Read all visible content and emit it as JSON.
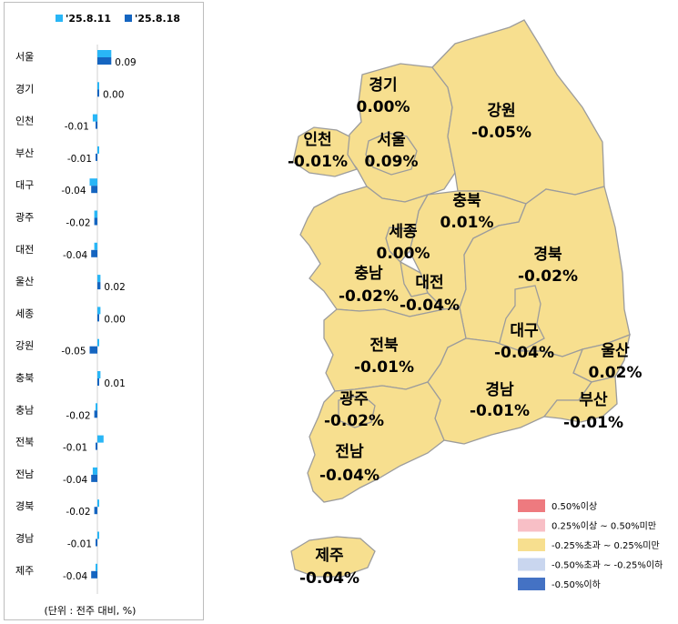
{
  "chart_data": [
    {
      "type": "bar",
      "orientation": "horizontal",
      "categories": [
        "서울",
        "경기",
        "인천",
        "부산",
        "대구",
        "광주",
        "대전",
        "울산",
        "세종",
        "강원",
        "충북",
        "충남",
        "전북",
        "전남",
        "경북",
        "경남",
        "제주"
      ],
      "series": [
        {
          "name": "'25.8.11",
          "color": "#29b6f6",
          "values": [
            0.09,
            0.01,
            -0.03,
            0.0,
            -0.05,
            -0.02,
            -0.02,
            0.02,
            0.02,
            0.0,
            0.02,
            -0.01,
            0.04,
            -0.03,
            0.0,
            0.01,
            -0.01
          ]
        },
        {
          "name": "'25.8.18",
          "color": "#1565c0",
          "values": [
            0.09,
            0.0,
            -0.01,
            -0.01,
            -0.04,
            -0.02,
            -0.04,
            0.02,
            0.0,
            -0.05,
            0.01,
            -0.02,
            -0.01,
            -0.04,
            -0.02,
            -0.01,
            -0.04
          ]
        }
      ],
      "value_labels": [
        "0.09",
        "0.00",
        "-0.01",
        "-0.01",
        "-0.04",
        "-0.02",
        "-0.04",
        "0.02",
        "0.00",
        "-0.05",
        "0.01",
        "-0.02",
        "-0.01",
        "-0.04",
        "-0.02",
        "-0.01",
        "-0.04"
      ],
      "unit_note": "(단위 : 전주 대비, %)",
      "legend": "top"
    },
    {
      "type": "choropleth",
      "regions": [
        {
          "name": "경기",
          "value": "0.00%"
        },
        {
          "name": "강원",
          "value": "-0.05%"
        },
        {
          "name": "인천",
          "value": "-0.01%"
        },
        {
          "name": "서울",
          "value": "0.09%"
        },
        {
          "name": "충북",
          "value": "0.01%"
        },
        {
          "name": "세종",
          "value": "0.00%"
        },
        {
          "name": "경북",
          "value": "-0.02%"
        },
        {
          "name": "충남",
          "value": "-0.02%"
        },
        {
          "name": "대전",
          "value": "-0.04%"
        },
        {
          "name": "대구",
          "value": "-0.04%"
        },
        {
          "name": "울산",
          "value": "0.02%"
        },
        {
          "name": "전북",
          "value": "-0.01%"
        },
        {
          "name": "경남",
          "value": "-0.01%"
        },
        {
          "name": "부산",
          "value": "-0.01%"
        },
        {
          "name": "광주",
          "value": "-0.02%"
        },
        {
          "name": "전남",
          "value": "-0.04%"
        },
        {
          "name": "제주",
          "value": "-0.04%"
        }
      ],
      "legend": [
        {
          "label": "0.50%이상",
          "color": "#ee7a7f"
        },
        {
          "label": "0.25%이상 ~ 0.50%미만",
          "color": "#f8bfc6"
        },
        {
          "label": "-0.25%초과 ~ 0.25%미만",
          "color": "#f7df8f"
        },
        {
          "label": "-0.50%초과 ~ -0.25%이하",
          "color": "#c9d6ef"
        },
        {
          "label": "-0.50%이하",
          "color": "#4472c4"
        }
      ]
    }
  ]
}
